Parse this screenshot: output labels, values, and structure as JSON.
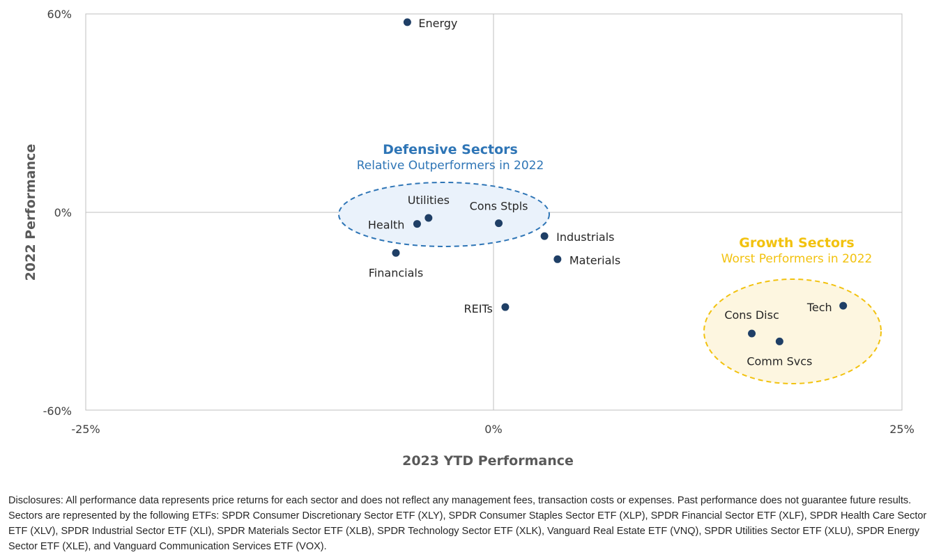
{
  "chart_data": {
    "type": "scatter",
    "xlabel": "2023 YTD Performance",
    "ylabel": "2022 Performance",
    "xlim": [
      -25,
      25
    ],
    "ylim": [
      -60,
      60
    ],
    "x_ticks": [
      "-25%",
      "0%",
      "25%"
    ],
    "y_ticks": [
      "60%",
      "0%",
      "-60%"
    ],
    "grid": "zero lines only",
    "points": [
      {
        "label": "Energy",
        "x": -5.3,
        "y": 57.5
      },
      {
        "label": "Utilities",
        "x": -4.0,
        "y": -1.8
      },
      {
        "label": "Health",
        "x": -4.7,
        "y": -3.6
      },
      {
        "label": "Cons Stpls",
        "x": 0.3,
        "y": -3.4
      },
      {
        "label": "Industrials",
        "x": 3.1,
        "y": -7.3
      },
      {
        "label": "Materials",
        "x": 3.9,
        "y": -14.3
      },
      {
        "label": "Financials",
        "x": -6.0,
        "y": -12.4
      },
      {
        "label": "REITs",
        "x": 0.7,
        "y": -28.8
      },
      {
        "label": "Tech",
        "x": 21.4,
        "y": -28.4
      },
      {
        "label": "Cons Disc",
        "x": 15.8,
        "y": -36.8
      },
      {
        "label": "Comm Svcs",
        "x": 17.5,
        "y": -39.2
      }
    ],
    "annotations": [
      {
        "title": "Defensive Sectors",
        "subtitle": "Relative Outperformers in 2022",
        "color": "#2e75b6",
        "fill": "#eaf2fb"
      },
      {
        "title": "Growth Sectors",
        "subtitle": "Worst Performers in 2022",
        "color": "#f2c20f",
        "fill": "#fdf6e0"
      }
    ],
    "point_color": "#1f3f66"
  },
  "disclosure": "Disclosures: All performance data represents price returns for each sector and does not reflect any management fees, transaction costs or expenses. Past performance does not guarantee future results. Sectors are represented by the following ETFs: SPDR Consumer Discretionary Sector ETF (XLY), SPDR Consumer Staples Sector ETF (XLP), SPDR Financial Sector ETF (XLF), SPDR Health Care Sector ETF (XLV), SPDR Industrial Sector ETF (XLI), SPDR Materials Sector ETF (XLB), SPDR Technology Sector ETF (XLK), Vanguard Real Estate ETF (VNQ), SPDR Utilities Sector ETF (XLU), SPDR Energy Sector ETF (XLE), and Vanguard Communication Services ETF (VOX)."
}
